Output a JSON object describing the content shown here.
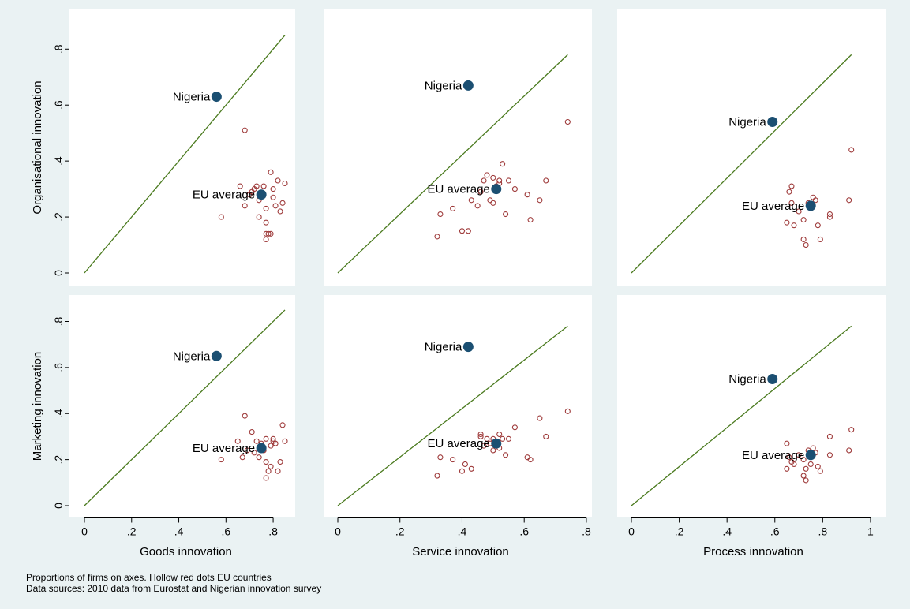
{
  "notes": [
    "Proportions of firms on axes. Hollow red dots EU countries",
    "Data sources: 2010 data from Eurostat and Nigerian innovation survey"
  ],
  "colors": {
    "background": "#eaf2f3",
    "panel": "#ffffff",
    "eu_dots": "#9e3a3a",
    "highlight_dots": "#1b4f72",
    "diagonal": "#4a7a1e"
  },
  "chart_data": [
    {
      "type": "scatter",
      "xlabel": "",
      "ylabel": "Organisational innovation",
      "xlim": [
        0,
        0.86
      ],
      "ylim": [
        0,
        0.86
      ],
      "x_ticks": [],
      "y_ticks": [
        "0",
        ".2",
        ".4",
        ".6",
        ".8"
      ],
      "diagonal": [
        [
          0,
          0
        ],
        [
          0.85,
          0.85
        ]
      ],
      "series": [
        {
          "role": "eu",
          "points": [
            [
              0.58,
              0.2
            ],
            [
              0.66,
              0.31
            ],
            [
              0.68,
              0.51
            ],
            [
              0.68,
              0.24
            ],
            [
              0.7,
              0.28
            ],
            [
              0.71,
              0.29
            ],
            [
              0.72,
              0.3
            ],
            [
              0.73,
              0.31
            ],
            [
              0.74,
              0.26
            ],
            [
              0.74,
              0.2
            ],
            [
              0.76,
              0.31
            ],
            [
              0.77,
              0.23
            ],
            [
              0.77,
              0.18
            ],
            [
              0.77,
              0.14
            ],
            [
              0.77,
              0.12
            ],
            [
              0.78,
              0.14
            ],
            [
              0.79,
              0.14
            ],
            [
              0.79,
              0.36
            ],
            [
              0.8,
              0.3
            ],
            [
              0.8,
              0.27
            ],
            [
              0.81,
              0.24
            ],
            [
              0.82,
              0.33
            ],
            [
              0.83,
              0.22
            ],
            [
              0.84,
              0.25
            ],
            [
              0.85,
              0.32
            ]
          ]
        },
        {
          "role": "highlight",
          "points": [
            [
              0.56,
              0.63
            ],
            [
              0.75,
              0.28
            ]
          ]
        }
      ],
      "annotations": [
        {
          "text": "Nigeria",
          "x": 0.56,
          "y": 0.63
        },
        {
          "text": "EU average",
          "x": 0.75,
          "y": 0.28
        }
      ]
    },
    {
      "type": "scatter",
      "xlabel": "",
      "ylabel": "",
      "xlim": [
        0,
        0.79
      ],
      "ylim": [
        0,
        0.86
      ],
      "x_ticks": [],
      "y_ticks": [],
      "diagonal": [
        [
          0,
          0
        ],
        [
          0.74,
          0.78
        ]
      ],
      "series": [
        {
          "role": "eu",
          "points": [
            [
              0.32,
              0.13
            ],
            [
              0.33,
              0.21
            ],
            [
              0.37,
              0.23
            ],
            [
              0.4,
              0.15
            ],
            [
              0.42,
              0.15
            ],
            [
              0.43,
              0.26
            ],
            [
              0.45,
              0.24
            ],
            [
              0.46,
              0.29
            ],
            [
              0.47,
              0.33
            ],
            [
              0.48,
              0.35
            ],
            [
              0.49,
              0.26
            ],
            [
              0.5,
              0.34
            ],
            [
              0.5,
              0.25
            ],
            [
              0.51,
              0.31
            ],
            [
              0.52,
              0.33
            ],
            [
              0.52,
              0.32
            ],
            [
              0.53,
              0.39
            ],
            [
              0.54,
              0.21
            ],
            [
              0.55,
              0.33
            ],
            [
              0.57,
              0.3
            ],
            [
              0.61,
              0.28
            ],
            [
              0.62,
              0.19
            ],
            [
              0.65,
              0.26
            ],
            [
              0.67,
              0.33
            ],
            [
              0.74,
              0.54
            ]
          ]
        },
        {
          "role": "highlight",
          "points": [
            [
              0.42,
              0.67
            ],
            [
              0.51,
              0.3
            ]
          ]
        }
      ],
      "annotations": [
        {
          "text": "Nigeria",
          "x": 0.42,
          "y": 0.67
        },
        {
          "text": "EU average",
          "x": 0.51,
          "y": 0.3
        }
      ]
    },
    {
      "type": "scatter",
      "xlabel": "",
      "ylabel": "",
      "xlim": [
        0,
        1.02
      ],
      "ylim": [
        0,
        0.86
      ],
      "x_ticks": [],
      "y_ticks": [],
      "diagonal": [
        [
          0,
          0
        ],
        [
          0.92,
          0.78
        ]
      ],
      "series": [
        {
          "role": "eu",
          "points": [
            [
              0.65,
              0.18
            ],
            [
              0.66,
              0.29
            ],
            [
              0.67,
              0.31
            ],
            [
              0.67,
              0.25
            ],
            [
              0.68,
              0.17
            ],
            [
              0.7,
              0.22
            ],
            [
              0.72,
              0.19
            ],
            [
              0.72,
              0.12
            ],
            [
              0.73,
              0.1
            ],
            [
              0.74,
              0.25
            ],
            [
              0.75,
              0.23
            ],
            [
              0.76,
              0.27
            ],
            [
              0.77,
              0.26
            ],
            [
              0.78,
              0.17
            ],
            [
              0.79,
              0.12
            ],
            [
              0.83,
              0.2
            ],
            [
              0.83,
              0.21
            ],
            [
              0.91,
              0.26
            ],
            [
              0.92,
              0.44
            ]
          ]
        },
        {
          "role": "highlight",
          "points": [
            [
              0.59,
              0.54
            ],
            [
              0.75,
              0.24
            ]
          ]
        }
      ],
      "annotations": [
        {
          "text": "Nigeria",
          "x": 0.59,
          "y": 0.54
        },
        {
          "text": "EU average",
          "x": 0.75,
          "y": 0.24
        }
      ]
    },
    {
      "type": "scatter",
      "xlabel": "Goods innovation",
      "ylabel": "Marketing innovation",
      "xlim": [
        0,
        0.86
      ],
      "ylim": [
        0,
        0.86
      ],
      "x_ticks": [
        "0",
        ".2",
        ".4",
        ".6",
        ".8"
      ],
      "y_ticks": [
        "0",
        ".2",
        ".4",
        ".6",
        ".8"
      ],
      "diagonal": [
        [
          0,
          0
        ],
        [
          0.85,
          0.85
        ]
      ],
      "series": [
        {
          "role": "eu",
          "points": [
            [
              0.58,
              0.2
            ],
            [
              0.65,
              0.28
            ],
            [
              0.67,
              0.21
            ],
            [
              0.68,
              0.39
            ],
            [
              0.69,
              0.24
            ],
            [
              0.71,
              0.32
            ],
            [
              0.72,
              0.23
            ],
            [
              0.73,
              0.28
            ],
            [
              0.74,
              0.21
            ],
            [
              0.75,
              0.27
            ],
            [
              0.76,
              0.24
            ],
            [
              0.77,
              0.29
            ],
            [
              0.77,
              0.19
            ],
            [
              0.77,
              0.12
            ],
            [
              0.78,
              0.15
            ],
            [
              0.79,
              0.17
            ],
            [
              0.79,
              0.26
            ],
            [
              0.8,
              0.29
            ],
            [
              0.8,
              0.28
            ],
            [
              0.81,
              0.27
            ],
            [
              0.82,
              0.15
            ],
            [
              0.83,
              0.19
            ],
            [
              0.84,
              0.35
            ],
            [
              0.85,
              0.28
            ]
          ]
        },
        {
          "role": "highlight",
          "points": [
            [
              0.56,
              0.65
            ],
            [
              0.75,
              0.25
            ]
          ]
        }
      ],
      "annotations": [
        {
          "text": "Nigeria",
          "x": 0.56,
          "y": 0.65
        },
        {
          "text": "EU average",
          "x": 0.75,
          "y": 0.25
        }
      ]
    },
    {
      "type": "scatter",
      "xlabel": "Service innovation",
      "ylabel": "",
      "xlim": [
        0,
        0.79
      ],
      "ylim": [
        0,
        0.86
      ],
      "x_ticks": [
        "0",
        ".2",
        ".4",
        ".6",
        ".8"
      ],
      "y_ticks": [],
      "diagonal": [
        [
          0,
          0
        ],
        [
          0.74,
          0.78
        ]
      ],
      "series": [
        {
          "role": "eu",
          "points": [
            [
              0.32,
              0.13
            ],
            [
              0.33,
              0.21
            ],
            [
              0.37,
              0.2
            ],
            [
              0.4,
              0.15
            ],
            [
              0.41,
              0.18
            ],
            [
              0.43,
              0.16
            ],
            [
              0.46,
              0.31
            ],
            [
              0.46,
              0.3
            ],
            [
              0.47,
              0.26
            ],
            [
              0.48,
              0.29
            ],
            [
              0.49,
              0.27
            ],
            [
              0.5,
              0.29
            ],
            [
              0.5,
              0.24
            ],
            [
              0.51,
              0.26
            ],
            [
              0.52,
              0.31
            ],
            [
              0.52,
              0.25
            ],
            [
              0.53,
              0.29
            ],
            [
              0.54,
              0.22
            ],
            [
              0.55,
              0.29
            ],
            [
              0.57,
              0.34
            ],
            [
              0.61,
              0.21
            ],
            [
              0.62,
              0.2
            ],
            [
              0.65,
              0.38
            ],
            [
              0.67,
              0.3
            ],
            [
              0.74,
              0.41
            ]
          ]
        },
        {
          "role": "highlight",
          "points": [
            [
              0.42,
              0.69
            ],
            [
              0.51,
              0.27
            ]
          ]
        }
      ],
      "annotations": [
        {
          "text": "Nigeria",
          "x": 0.42,
          "y": 0.69
        },
        {
          "text": "EU average",
          "x": 0.51,
          "y": 0.27
        }
      ]
    },
    {
      "type": "scatter",
      "xlabel": "Process innovation",
      "ylabel": "",
      "xlim": [
        0,
        1.02
      ],
      "ylim": [
        0,
        0.86
      ],
      "x_ticks": [
        "0",
        ".2",
        ".4",
        ".6",
        ".8",
        "1"
      ],
      "y_ticks": [],
      "diagonal": [
        [
          0,
          0
        ],
        [
          0.92,
          0.78
        ]
      ],
      "series": [
        {
          "role": "eu",
          "points": [
            [
              0.65,
              0.27
            ],
            [
              0.65,
              0.16
            ],
            [
              0.66,
              0.21
            ],
            [
              0.67,
              0.19
            ],
            [
              0.68,
              0.18
            ],
            [
              0.7,
              0.22
            ],
            [
              0.72,
              0.2
            ],
            [
              0.72,
              0.13
            ],
            [
              0.73,
              0.11
            ],
            [
              0.73,
              0.16
            ],
            [
              0.74,
              0.24
            ],
            [
              0.75,
              0.18
            ],
            [
              0.76,
              0.25
            ],
            [
              0.77,
              0.23
            ],
            [
              0.78,
              0.17
            ],
            [
              0.79,
              0.15
            ],
            [
              0.83,
              0.22
            ],
            [
              0.83,
              0.3
            ],
            [
              0.91,
              0.24
            ],
            [
              0.92,
              0.33
            ]
          ]
        },
        {
          "role": "highlight",
          "points": [
            [
              0.59,
              0.55
            ],
            [
              0.75,
              0.22
            ]
          ]
        }
      ],
      "annotations": [
        {
          "text": "Nigeria",
          "x": 0.59,
          "y": 0.55
        },
        {
          "text": "EU average",
          "x": 0.75,
          "y": 0.22
        }
      ]
    }
  ]
}
